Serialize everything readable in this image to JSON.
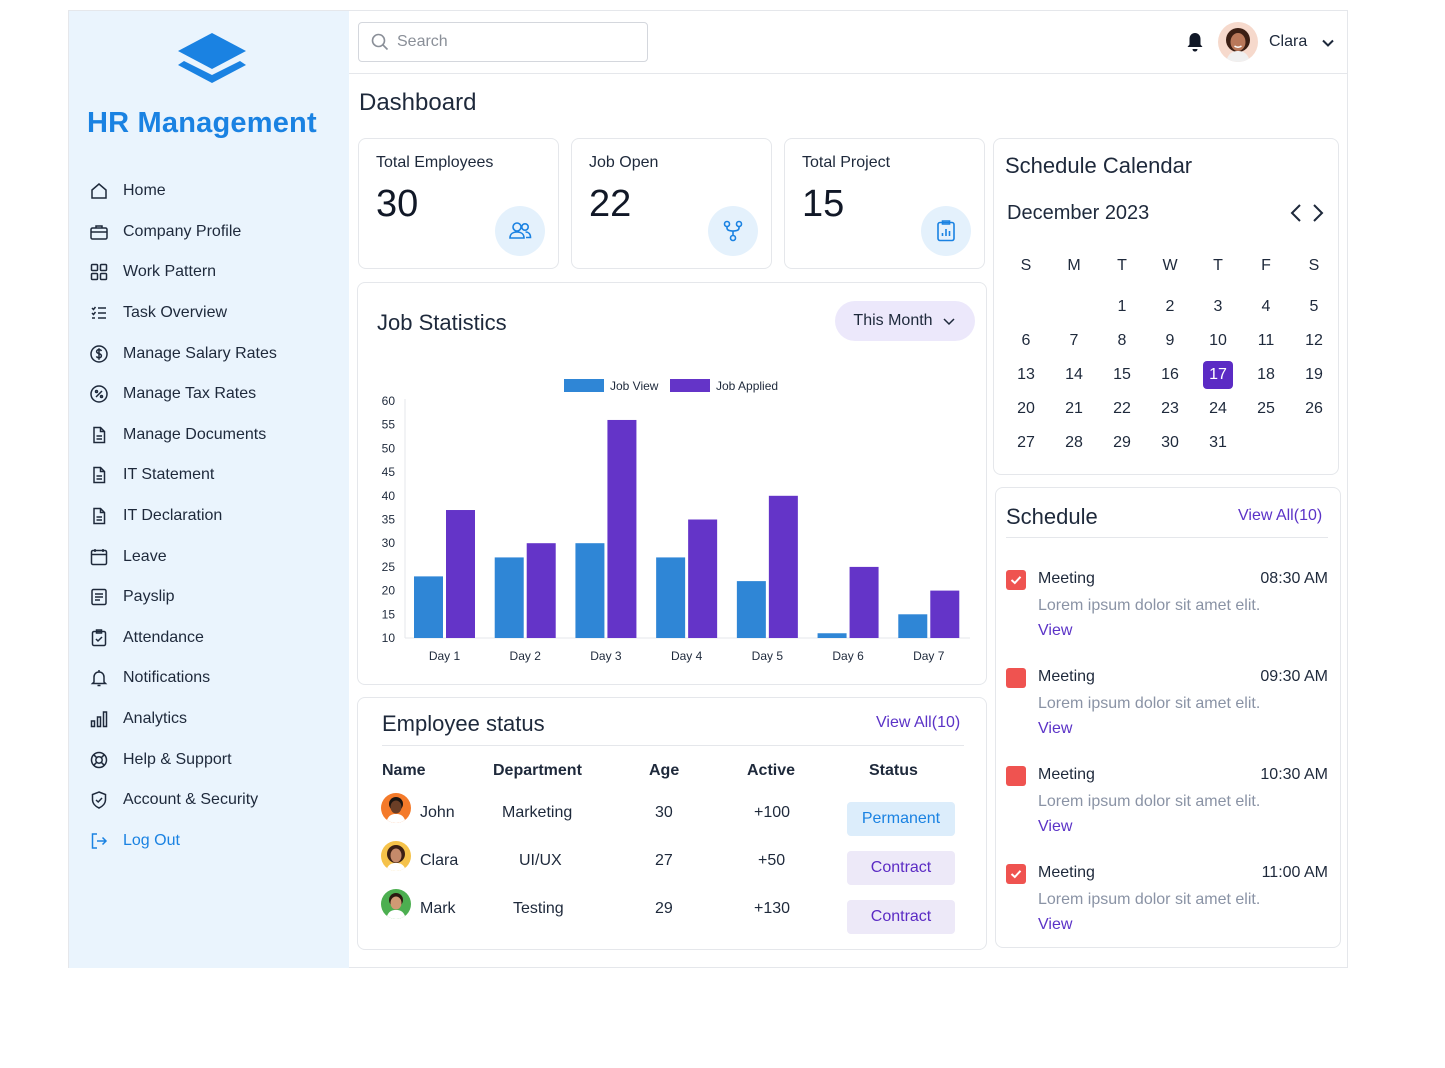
{
  "sidebar": {
    "brand": "HR Management",
    "items": [
      {
        "label": "Home"
      },
      {
        "label": "Company Profile"
      },
      {
        "label": "Work Pattern"
      },
      {
        "label": "Task Overview"
      },
      {
        "label": "Manage Salary Rates"
      },
      {
        "label": "Manage Tax Rates"
      },
      {
        "label": "Manage Documents"
      },
      {
        "label": "IT Statement"
      },
      {
        "label": "IT Declaration"
      },
      {
        "label": "Leave"
      },
      {
        "label": "Payslip"
      },
      {
        "label": "Attendance"
      },
      {
        "label": "Notifications"
      },
      {
        "label": "Analytics"
      },
      {
        "label": "Help & Support"
      },
      {
        "label": "Account & Security"
      },
      {
        "label": "Log Out"
      }
    ]
  },
  "topbar": {
    "search_placeholder": "Search",
    "user_name": "Clara"
  },
  "page_title": "Dashboard",
  "stats": [
    {
      "label": "Total Employees",
      "value": "30"
    },
    {
      "label": "Job Open",
      "value": "22"
    },
    {
      "label": "Total Project",
      "value": "15"
    }
  ],
  "job_statistics": {
    "title": "Job Statistics",
    "filter_label": "This Month"
  },
  "chart_data": {
    "type": "bar",
    "title": "Job Statistics",
    "categories": [
      "Day 1",
      "Day 2",
      "Day 3",
      "Day 4",
      "Day 5",
      "Day 6",
      "Day 7"
    ],
    "series": [
      {
        "name": "Job View",
        "color": "#2f86d6",
        "values": [
          23,
          27,
          30,
          27,
          22,
          11,
          15
        ]
      },
      {
        "name": "Job Applied",
        "color": "#6434c8",
        "values": [
          37,
          30,
          56,
          35,
          40,
          25,
          20
        ]
      }
    ],
    "yticks": [
      10,
      15,
      20,
      25,
      30,
      35,
      40,
      45,
      50,
      55,
      60
    ],
    "ylim": [
      10,
      60
    ],
    "legend_position": "top-center"
  },
  "employee_status": {
    "title": "Employee status",
    "view_all": "View All(10)",
    "columns": [
      "Name",
      "Department",
      "Age",
      "Active",
      "Status"
    ],
    "rows": [
      {
        "name": "John",
        "department": "Marketing",
        "age": "30",
        "active": "+100",
        "status": "Permanent"
      },
      {
        "name": "Clara",
        "department": "UI/UX",
        "age": "27",
        "active": "+50",
        "status": "Contract"
      },
      {
        "name": "Mark",
        "department": "Testing",
        "age": "29",
        "active": "+130",
        "status": "Contract"
      }
    ]
  },
  "calendar": {
    "title": "Schedule Calendar",
    "month": "December 2023",
    "weekdays": [
      "S",
      "M",
      "T",
      "W",
      "T",
      "F",
      "S"
    ],
    "weeks": [
      [
        "",
        "",
        "1",
        "2",
        "3",
        "4",
        "5"
      ],
      [
        "6",
        "7",
        "8",
        "9",
        "10",
        "11",
        "12"
      ],
      [
        "13",
        "14",
        "15",
        "16",
        "17",
        "18",
        "19"
      ],
      [
        "20",
        "21",
        "22",
        "23",
        "24",
        "25",
        "26"
      ],
      [
        "27",
        "28",
        "29",
        "30",
        "31",
        "",
        ""
      ]
    ],
    "today": "17"
  },
  "schedule": {
    "title": "Schedule",
    "view_all": "View All(10)",
    "items": [
      {
        "title": "Meeting",
        "time": "08:30 AM",
        "desc": "Lorem ipsum dolor sit amet elit.",
        "view": "View",
        "checked": true
      },
      {
        "title": "Meeting",
        "time": "09:30 AM",
        "desc": "Lorem ipsum dolor sit amet elit.",
        "view": "View",
        "checked": false
      },
      {
        "title": "Meeting",
        "time": "10:30 AM",
        "desc": "Lorem ipsum dolor sit amet elit.",
        "view": "View",
        "checked": false
      },
      {
        "title": "Meeting",
        "time": "11:00 AM",
        "desc": "Lorem ipsum dolor sit amet elit.",
        "view": "View",
        "checked": true
      }
    ]
  },
  "colors": {
    "primary": "#1a82e2",
    "accent": "#5b2bc4",
    "sidebar_bg": "#eaf4fd",
    "permanent_bg": "#dcedfb",
    "permanent_text": "#1a82e2",
    "contract_bg": "#ede9f8",
    "contract_text": "#5b2bc4",
    "checkbox": "#ef5350"
  }
}
